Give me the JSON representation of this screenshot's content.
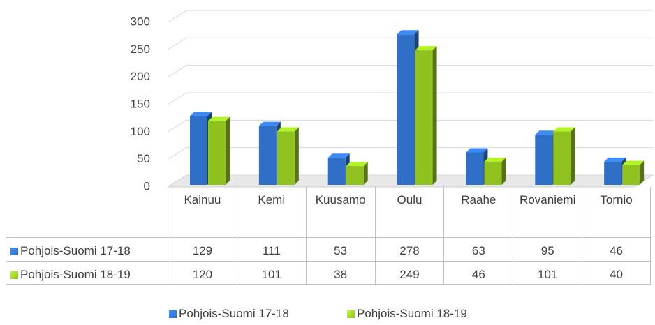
{
  "chart_data": {
    "type": "bar",
    "categories": [
      "Kainuu",
      "Kemi",
      "Kuusamo",
      "Oulu",
      "Raahe",
      "Rovaniemi",
      "Tornio"
    ],
    "series": [
      {
        "name": "Pohjois-Suomi 17-18",
        "color": "#2f6fc8",
        "values": [
          129,
          111,
          53,
          278,
          63,
          95,
          46
        ]
      },
      {
        "name": "Pohjois-Suomi 18-19",
        "color": "#8fc21f",
        "values": [
          120,
          101,
          38,
          249,
          46,
          101,
          40
        ]
      }
    ],
    "ylim": [
      0,
      300
    ],
    "yticks": [
      0,
      50,
      100,
      150,
      200,
      250,
      300
    ],
    "grid": true
  }
}
